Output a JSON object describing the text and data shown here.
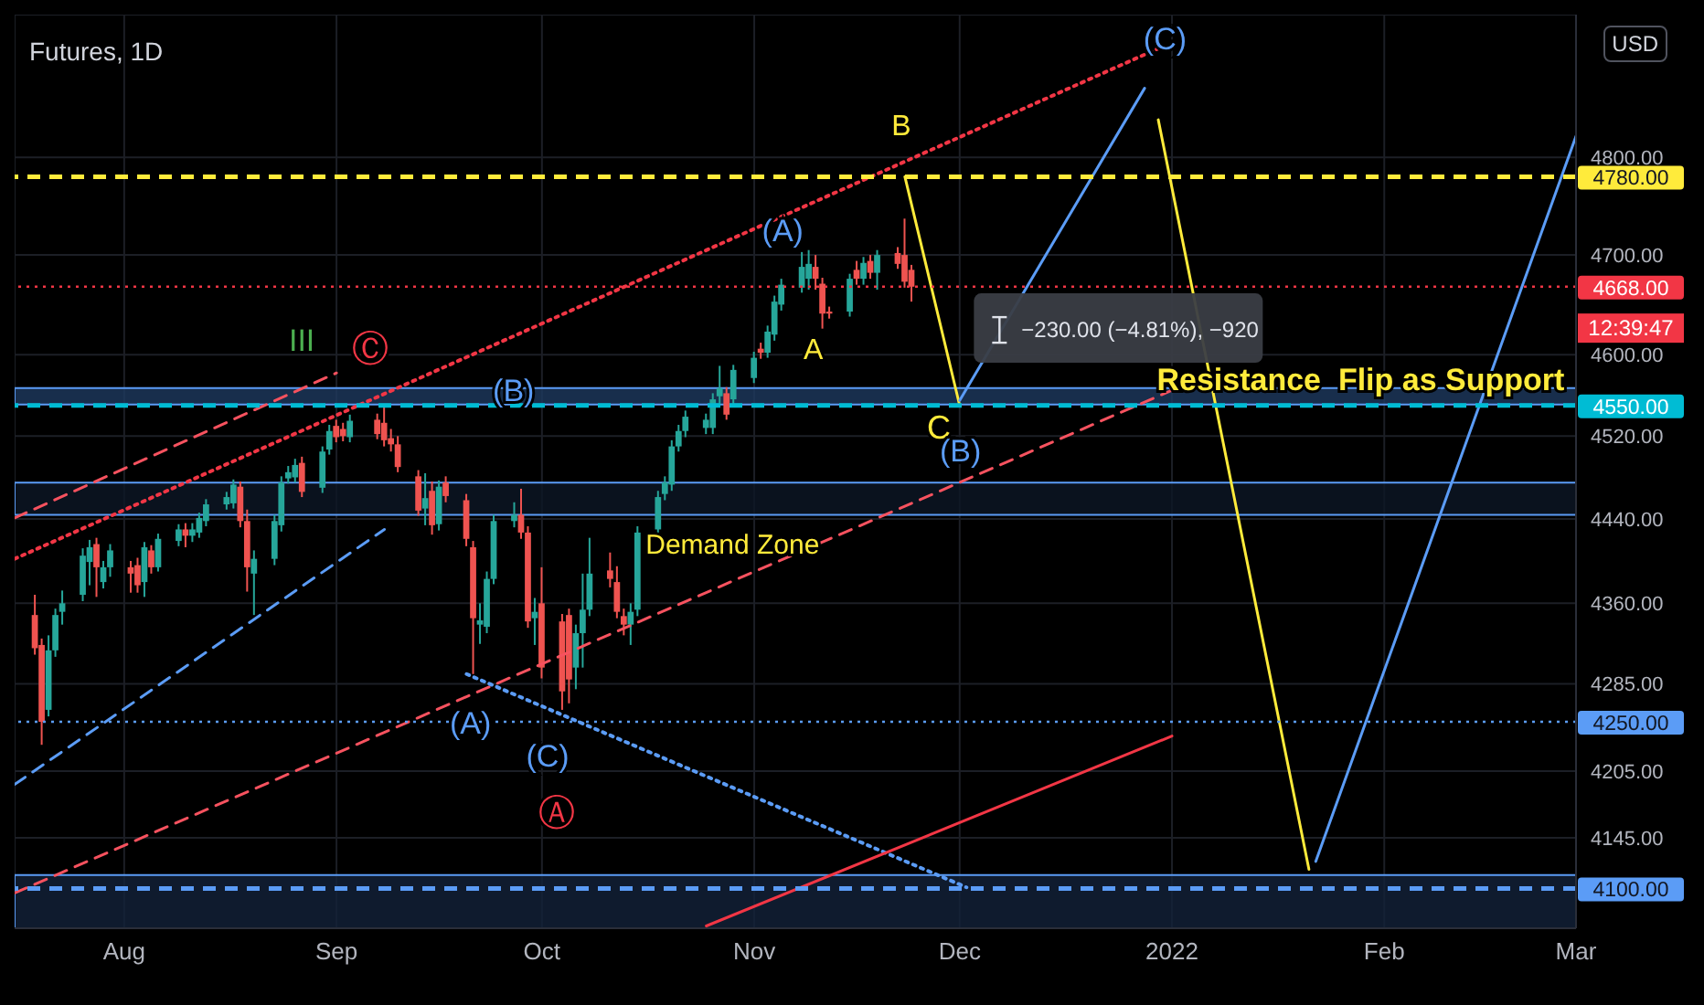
{
  "chart_data": {
    "type": "candlestick",
    "title": "Futures, 1D",
    "ylabel": "USD",
    "x": [
      "2021-07-19",
      "2021-07-20",
      "2021-07-21",
      "2021-07-22",
      "2021-07-23",
      "2021-07-26",
      "2021-07-27",
      "2021-07-28",
      "2021-07-29",
      "2021-07-30",
      "2021-08-02",
      "2021-08-03",
      "2021-08-04",
      "2021-08-05",
      "2021-08-06",
      "2021-08-09",
      "2021-08-10",
      "2021-08-11",
      "2021-08-12",
      "2021-08-13",
      "2021-08-16",
      "2021-08-17",
      "2021-08-18",
      "2021-08-19",
      "2021-08-20",
      "2021-08-23",
      "2021-08-24",
      "2021-08-25",
      "2021-08-26",
      "2021-08-27",
      "2021-08-30",
      "2021-08-31",
      "2021-09-01",
      "2021-09-02",
      "2021-09-03",
      "2021-09-07",
      "2021-09-08",
      "2021-09-09",
      "2021-09-10",
      "2021-09-13",
      "2021-09-14",
      "2021-09-15",
      "2021-09-16",
      "2021-09-17",
      "2021-09-20",
      "2021-09-21",
      "2021-09-22",
      "2021-09-23",
      "2021-09-24",
      "2021-09-27",
      "2021-09-28",
      "2021-09-29",
      "2021-09-30",
      "2021-10-01",
      "2021-10-04",
      "2021-10-05",
      "2021-10-06",
      "2021-10-07",
      "2021-10-08",
      "2021-10-11",
      "2021-10-12",
      "2021-10-13",
      "2021-10-14",
      "2021-10-15",
      "2021-10-18",
      "2021-10-19",
      "2021-10-20",
      "2021-10-21",
      "2021-10-22",
      "2021-10-25",
      "2021-10-26",
      "2021-10-27",
      "2021-10-28",
      "2021-10-29",
      "2021-11-01",
      "2021-11-02",
      "2021-11-03",
      "2021-11-04",
      "2021-11-05",
      "2021-11-08",
      "2021-11-09",
      "2021-11-10",
      "2021-11-11",
      "2021-11-12",
      "2021-11-15",
      "2021-11-16",
      "2021-11-17",
      "2021-11-18",
      "2021-11-19",
      "2021-11-22",
      "2021-11-23",
      "2021-11-24"
    ],
    "ohlc": [
      [
        4349,
        4368,
        4312,
        4318
      ],
      [
        4321,
        4327,
        4229,
        4250
      ],
      [
        4261,
        4330,
        4255,
        4316
      ],
      [
        4316,
        4355,
        4310,
        4349
      ],
      [
        4352,
        4372,
        4340,
        4360
      ],
      [
        4368,
        4412,
        4362,
        4405
      ],
      [
        4399,
        4420,
        4377,
        4413
      ],
      [
        4416,
        4422,
        4366,
        4394
      ],
      [
        4380,
        4400,
        4374,
        4394
      ],
      [
        4394,
        4416,
        4385,
        4410
      ],
      [
        4394,
        4400,
        4370,
        4388
      ],
      [
        4396,
        4403,
        4370,
        4377
      ],
      [
        4380,
        4418,
        4366,
        4413
      ],
      [
        4410,
        4415,
        4388,
        4394
      ],
      [
        4394,
        4426,
        4390,
        4421
      ],
      [
        4419,
        4435,
        4414,
        4430
      ],
      [
        4430,
        4436,
        4413,
        4424
      ],
      [
        4424,
        4436,
        4418,
        4430
      ],
      [
        4427,
        4446,
        4422,
        4441
      ],
      [
        4438,
        4459,
        4433,
        4454
      ],
      [
        4454,
        4466,
        4449,
        4461
      ],
      [
        4455,
        4478,
        4450,
        4473
      ],
      [
        4471,
        4476,
        4432,
        4438
      ],
      [
        4438,
        4449,
        4371,
        4394
      ],
      [
        4388,
        4410,
        4349,
        4402
      ],
      [
        4402,
        4444,
        4396,
        4438
      ],
      [
        4434,
        4481,
        4428,
        4475
      ],
      [
        4479,
        4491,
        4474,
        4485
      ],
      [
        4480,
        4498,
        4475,
        4492
      ],
      [
        4494,
        4500,
        4461,
        4466
      ],
      [
        4470,
        4510,
        4465,
        4505
      ],
      [
        4507,
        4531,
        4502,
        4525
      ],
      [
        4530,
        4536,
        4514,
        4519
      ],
      [
        4527,
        4533,
        4515,
        4520
      ],
      [
        4519,
        4541,
        4514,
        4535
      ],
      [
        4536,
        4542,
        4517,
        4522
      ],
      [
        4533,
        4550,
        4510,
        4516
      ],
      [
        4518,
        4527,
        4505,
        4512
      ],
      [
        4512,
        4520,
        4485,
        4490
      ],
      [
        4481,
        4487,
        4443,
        4448
      ],
      [
        4450,
        4484,
        4434,
        4460
      ],
      [
        4467,
        4476,
        4425,
        4434
      ],
      [
        4435,
        4477,
        4429,
        4471
      ],
      [
        4475,
        4481,
        4456,
        4462
      ],
      [
        4458,
        4464,
        4414,
        4421
      ],
      [
        4413,
        4419,
        4294,
        4346
      ],
      [
        4340,
        4360,
        4322,
        4344
      ],
      [
        4338,
        4390,
        4332,
        4383
      ],
      [
        4383,
        4444,
        4378,
        4438
      ],
      [
        4438,
        4456,
        4432,
        4444
      ],
      [
        4444,
        4469,
        4421,
        4427
      ],
      [
        4427,
        4433,
        4337,
        4343
      ],
      [
        4346,
        4365,
        4321,
        4352
      ],
      [
        4360,
        4394,
        4290,
        4300
      ],
      [
        4343,
        4350,
        4261,
        4278
      ],
      [
        4349,
        4355,
        4267,
        4289
      ],
      [
        4300,
        4340,
        4280,
        4332
      ],
      [
        4332,
        4388,
        4300,
        4354
      ],
      [
        4354,
        4422,
        4348,
        4388
      ],
      [
        4391,
        4408,
        4375,
        4383
      ],
      [
        4380,
        4395,
        4346,
        4352
      ],
      [
        4348,
        4355,
        4330,
        4340
      ],
      [
        4340,
        4360,
        4321,
        4352
      ],
      [
        4354,
        4433,
        4348,
        4427
      ],
      [
        4430,
        4467,
        4425,
        4461
      ],
      [
        4464,
        4481,
        4458,
        4475
      ],
      [
        4473,
        4516,
        4467,
        4510
      ],
      [
        4510,
        4531,
        4505,
        4525
      ],
      [
        4525,
        4545,
        4519,
        4539
      ],
      [
        4528,
        4542,
        4522,
        4536
      ],
      [
        4528,
        4562,
        4522,
        4556
      ],
      [
        4559,
        4589,
        4550,
        4567
      ],
      [
        4562,
        4568,
        4536,
        4541
      ],
      [
        4556,
        4590,
        4550,
        4585
      ],
      [
        4577,
        4603,
        4572,
        4597
      ],
      [
        4606,
        4612,
        4596,
        4602
      ],
      [
        4602,
        4629,
        4597,
        4623
      ],
      [
        4620,
        4659,
        4614,
        4653
      ],
      [
        4650,
        4676,
        4644,
        4670
      ],
      [
        4667,
        4703,
        4662,
        4688
      ],
      [
        4676,
        4705,
        4665,
        4691
      ],
      [
        4688,
        4700,
        4665,
        4676
      ],
      [
        4671,
        4677,
        4626,
        4641
      ],
      [
        4643,
        4648,
        4636,
        4641
      ],
      [
        4643,
        4681,
        4638,
        4676
      ],
      [
        4685,
        4694,
        4670,
        4676
      ],
      [
        4676,
        4698,
        4670,
        4692
      ],
      [
        4694,
        4700,
        4676,
        4682
      ],
      [
        4682,
        4705,
        4665,
        4700
      ],
      [
        4702,
        4708,
        4686,
        4691
      ],
      [
        4700,
        4737,
        4667,
        4673
      ],
      [
        4685,
        4690,
        4653,
        4668
      ]
    ],
    "series": [
      {
        "type": "line",
        "x": [
          "2021-07-16",
          "2021-12-30"
        ],
        "values": [
          4402,
          4914
        ],
        "color": "#f23645",
        "line_style": "dotted"
      },
      {
        "type": "line",
        "x": [
          "2021-07-16",
          "2021-09-01"
        ],
        "values": [
          4441,
          4582
        ],
        "color": "#f7525f",
        "line_style": "dashed"
      },
      {
        "type": "line",
        "x": [
          "2021-07-16",
          "2021-09-08"
        ],
        "values": [
          4193,
          4430
        ],
        "color": "#5b9cf6",
        "line_style": "dashed"
      },
      {
        "type": "line",
        "x": [
          "2021-07-16",
          "2022-01-01"
        ],
        "values": [
          4096,
          4565
        ],
        "color": "#f7525f",
        "line_style": "dashed"
      },
      {
        "type": "line",
        "x": [
          "2021-09-20",
          "2021-12-02"
        ],
        "values": [
          4294,
          4101
        ],
        "color": "#5b9cf6",
        "line_style": "dotted"
      },
      {
        "type": "line",
        "x": [
          "2021-10-25",
          "2022-01-01"
        ],
        "values": [
          4067,
          4237
        ],
        "color": "#f23645",
        "line_style": "solid"
      },
      {
        "type": "line",
        "x": [
          "2021-11-23",
          "2021-12-01",
          "2021-12-15",
          "2021-12-30",
          "2022-01-21"
        ],
        "values": [
          4780,
          4550,
          null,
          4839,
          4117
        ],
        "color": "#ffeb3b",
        "line_style": "solid"
      },
      {
        "type": "line",
        "x": [
          "2021-12-01",
          "2021-12-28",
          "2022-01-10",
          "2022-01-22",
          "2022-03-01"
        ],
        "values": [
          4555,
          4872,
          null,
          4124,
          4822
        ],
        "color": "#5b9cf6",
        "line_style": "solid"
      }
    ],
    "xlim": [
      "2021-07-16",
      "2022-03-01"
    ],
    "xticks": [
      {
        "value": "2021-08-01",
        "label": "Aug"
      },
      {
        "value": "2021-09-01",
        "label": "Sep"
      },
      {
        "value": "2021-10-01",
        "label": "Oct"
      },
      {
        "value": "2021-11-01",
        "label": "Nov"
      },
      {
        "value": "2021-12-01",
        "label": "Dec"
      },
      {
        "value": "2022-01-01",
        "label": "2022"
      },
      {
        "value": "2022-02-01",
        "label": "Feb"
      },
      {
        "value": "2022-03-01",
        "label": "Mar"
      }
    ],
    "ylim": [
      4065,
      4950
    ],
    "log": true,
    "yticks": [
      {
        "value": 4145,
        "label": "4145.00"
      },
      {
        "value": 4205,
        "label": "4205.00"
      },
      {
        "value": 4285,
        "label": "4285.00"
      },
      {
        "value": 4360,
        "label": "4360.00"
      },
      {
        "value": 4440,
        "label": "4440.00"
      },
      {
        "value": 4520,
        "label": "4520.00"
      },
      {
        "value": 4600,
        "label": "4600.00"
      },
      {
        "value": 4700,
        "label": "4700.00"
      },
      {
        "value": 4800,
        "label": "4800.00"
      }
    ],
    "ref_lines": [
      {
        "axis": "y",
        "value": 4780,
        "label": "4780.00",
        "color": "#ffeb3b",
        "line_style": "dashed"
      },
      {
        "axis": "y",
        "value": 4668,
        "label": "4668.00",
        "color": "#f23645",
        "line_style": "dotted"
      },
      {
        "axis": "y",
        "value": 4550,
        "label": "4550.00",
        "color": "#00bcd4",
        "line_style": "dashed"
      },
      {
        "axis": "y",
        "value": 4250,
        "label": "4250.00",
        "color": "#5b9cf6",
        "line_style": "dotted"
      },
      {
        "axis": "y",
        "value": 4100,
        "label": "4100.00",
        "color": "#5b9cf6",
        "line_style": "dashed"
      }
    ],
    "bands": [
      {
        "axis": "y",
        "from": 4551,
        "to": 4567,
        "color": "#1e3a5f"
      },
      {
        "axis": "y",
        "from": 4444,
        "to": 4475,
        "color": "#0d1626"
      },
      {
        "axis": "y",
        "from": 4065,
        "to": 4112,
        "color": "#13223a"
      }
    ],
    "annotations": [
      "III",
      "Ⓒ",
      "(B)",
      "(A)",
      "(C)",
      "Ⓐ",
      "(A)",
      "A",
      "B",
      "C",
      "(B)",
      "(C)",
      "Demand Zone",
      "Resistance  Flip as Support",
      "−230.00 (−4.81%), −920",
      "12:39:47"
    ],
    "grid": true,
    "legend": false
  }
}
